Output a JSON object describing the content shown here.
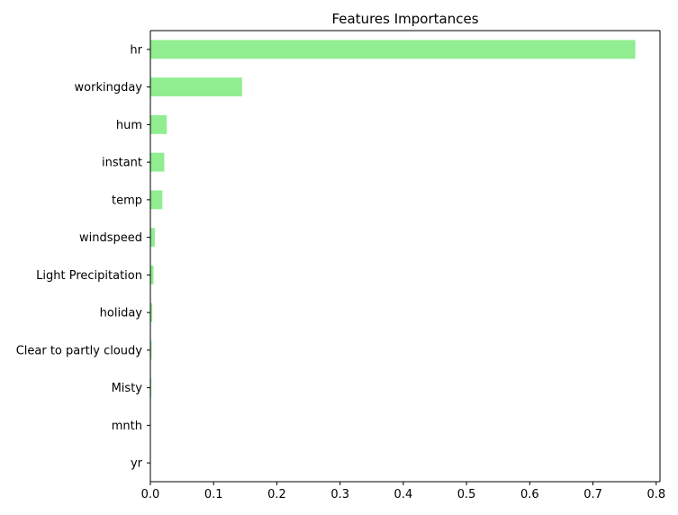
{
  "chart_data": {
    "type": "bar",
    "orientation": "horizontal",
    "title": "Features Importances",
    "xlabel": "",
    "ylabel": "",
    "categories": [
      "hr",
      "workingday",
      "hum",
      "instant",
      "temp",
      "windspeed",
      "Light Precipitation",
      "holiday",
      "Clear to partly cloudy",
      "Misty",
      "mnth",
      "yr"
    ],
    "values": [
      0.767,
      0.145,
      0.026,
      0.022,
      0.019,
      0.007,
      0.005,
      0.003,
      0.002,
      0.0015,
      0.0005,
      0.0003
    ],
    "xlim": [
      0,
      0.806
    ],
    "xticks": [
      "0.0",
      "0.1",
      "0.2",
      "0.3",
      "0.4",
      "0.5",
      "0.6",
      "0.7",
      "0.8"
    ],
    "grid": false,
    "legend": "none",
    "bar_color": "#90ee90"
  }
}
